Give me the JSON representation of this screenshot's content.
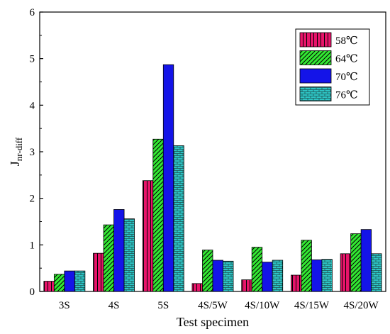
{
  "chart_data": {
    "type": "bar",
    "title": "",
    "xlabel": "Test specimen",
    "ylabel": "J",
    "ylabel_sub": "nr-diff",
    "ylim": [
      0,
      6
    ],
    "yticks": [
      0,
      1,
      2,
      3,
      4,
      5,
      6
    ],
    "grid": false,
    "legend_position": "top-right",
    "categories": [
      "3S",
      "4S",
      "5S",
      "4S/5W",
      "4S/10W",
      "4S/15W",
      "4S/20W"
    ],
    "series": [
      {
        "name": "58℃",
        "color": "#e8146a",
        "pattern": "vertical-lines",
        "values": [
          0.22,
          0.82,
          2.38,
          0.17,
          0.25,
          0.35,
          0.81
        ]
      },
      {
        "name": "64℃",
        "color": "#33e833",
        "pattern": "diagonal-lines",
        "values": [
          0.37,
          1.43,
          3.27,
          0.89,
          0.95,
          1.1,
          1.24
        ]
      },
      {
        "name": "70℃",
        "color": "#1414e8",
        "pattern": "solid",
        "values": [
          0.44,
          1.76,
          4.87,
          0.67,
          0.63,
          0.68,
          1.33
        ]
      },
      {
        "name": "76℃",
        "color": "#2ec4c4",
        "pattern": "brick",
        "values": [
          0.44,
          1.56,
          3.13,
          0.65,
          0.67,
          0.69,
          0.81
        ]
      }
    ]
  }
}
